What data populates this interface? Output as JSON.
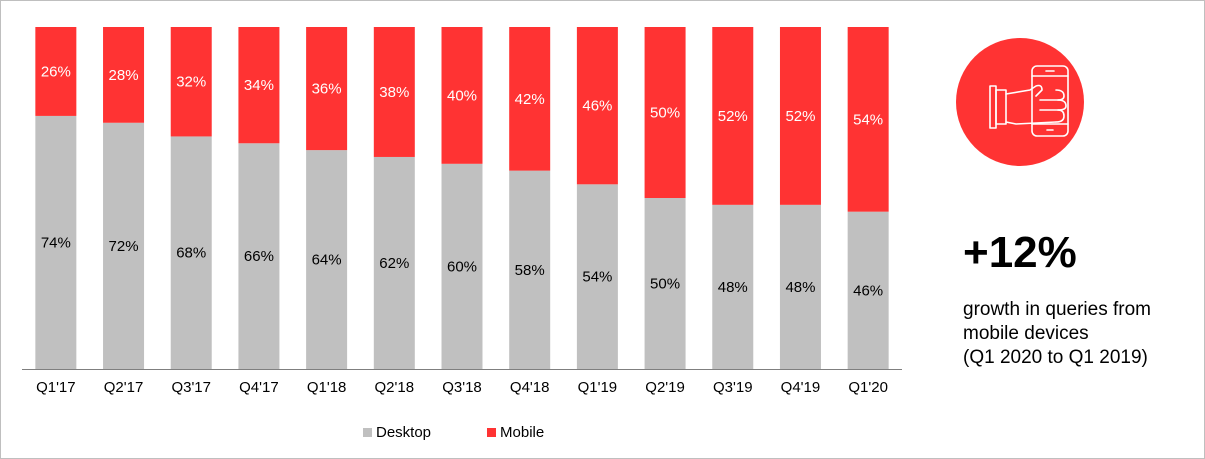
{
  "chart_data": {
    "type": "bar",
    "stacked": true,
    "normalized_to_100": true,
    "categories": [
      "Q1'17",
      "Q2'17",
      "Q3'17",
      "Q4'17",
      "Q1'18",
      "Q2'18",
      "Q3'18",
      "Q4'18",
      "Q1'19",
      "Q2'19",
      "Q3'19",
      "Q4'19",
      "Q1'20"
    ],
    "series": [
      {
        "name": "Desktop",
        "color": "#c0c0c0",
        "values": [
          74,
          72,
          68,
          66,
          64,
          62,
          60,
          58,
          54,
          50,
          48,
          48,
          46
        ],
        "labels": [
          "74%",
          "72%",
          "68%",
          "66%",
          "64%",
          "62%",
          "60%",
          "58%",
          "54%",
          "50%",
          "48%",
          "48%",
          "46%"
        ]
      },
      {
        "name": "Mobile",
        "color": "#ff3333",
        "values": [
          26,
          28,
          32,
          34,
          36,
          38,
          40,
          42,
          46,
          50,
          52,
          52,
          54
        ],
        "labels": [
          "26%",
          "28%",
          "32%",
          "34%",
          "36%",
          "38%",
          "40%",
          "42%",
          "46%",
          "50%",
          "52%",
          "52%",
          "54%"
        ]
      }
    ],
    "ylim": [
      0,
      100
    ],
    "grid": false,
    "legend_position": "bottom"
  },
  "highlight": {
    "icon": "hand-holding-smartphone-icon",
    "value": "+12%",
    "description_lines": [
      "growth in queries from",
      "mobile devices",
      "(Q1 2020 to Q1 2019)"
    ]
  }
}
